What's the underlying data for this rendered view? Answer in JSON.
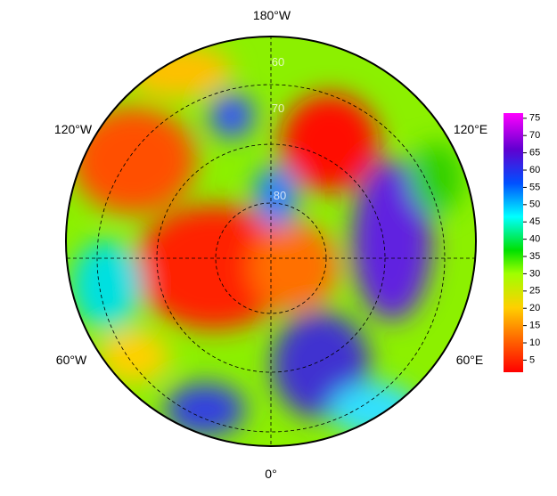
{
  "map": {
    "lon_labels": {
      "top": "180°W",
      "upper_left": "120°W",
      "upper_right": "120°E",
      "lower_left": "60°W",
      "lower_right": "60°E",
      "bottom": "0°"
    },
    "lat_labels": [
      "60",
      "70",
      "80"
    ]
  },
  "colorbar": {
    "lim": [
      1.5,
      76.5
    ],
    "ticks": [
      5,
      10,
      15,
      20,
      25,
      30,
      35,
      40,
      45,
      50,
      55,
      60,
      65,
      70,
      75
    ]
  }
}
